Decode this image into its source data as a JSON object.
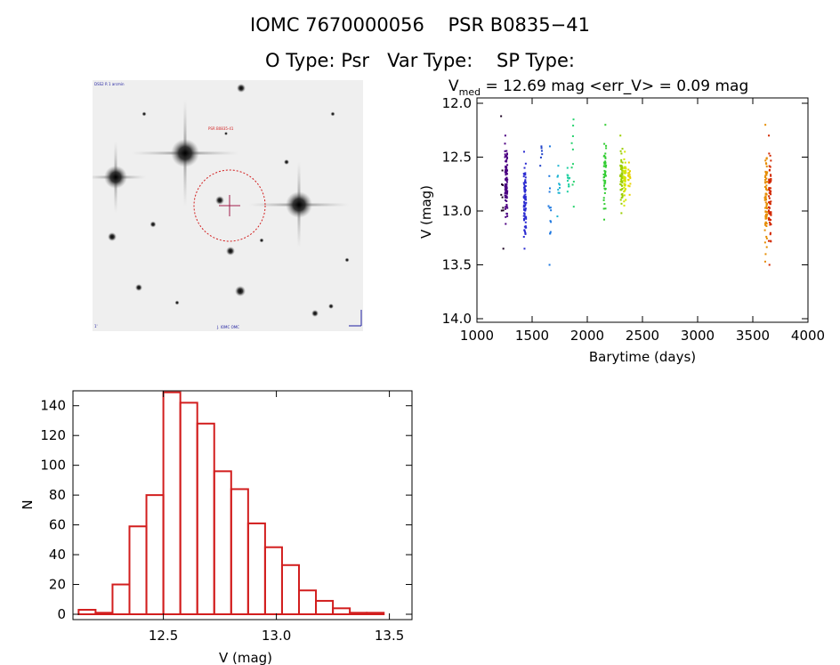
{
  "header": {
    "title_line1": "IOMC 7670000056    PSR B0835−41",
    "title_line2": "O Type: Psr   Var Type:    SP Type:"
  },
  "finder": {
    "label_top_left": "DSS2 R 1 arcmin",
    "label_target": "PSR B0835-41",
    "label_bottom_left": "1'",
    "label_bottom_center": "J. IOMC OMC"
  },
  "chart_data": [
    {
      "type": "scatter",
      "title": "V_med = 12.69 mag <err_V> = 0.09 mag",
      "title_main": "V",
      "title_sub": "med",
      "title_rest": " = 12.69 mag <err_V> = 0.09 mag",
      "xlabel": "Barytime (days)",
      "ylabel": "V (mag)",
      "xlim": [
        1000,
        4000
      ],
      "ylim": [
        14.0,
        12.0
      ],
      "y_inverted": true,
      "xticks": [
        1000,
        1500,
        2000,
        2500,
        3000,
        3500,
        4000
      ],
      "xtick_labels": [
        "1000",
        "1500",
        "2000",
        "2500",
        "3000",
        "3500",
        "4000"
      ],
      "yticks": [
        12.0,
        12.5,
        13.0,
        13.5,
        14.0
      ],
      "ytick_labels": [
        "12.0",
        "12.5",
        "13.0",
        "13.5",
        "14.0"
      ],
      "colormap": "time (purple → red)",
      "clusters": [
        {
          "x": 1230,
          "y_min": 12.12,
          "y_max": 13.35,
          "n": 10,
          "color": "#1a0020"
        },
        {
          "x": 1265,
          "y_min": 12.3,
          "y_max": 13.12,
          "n": 90,
          "color": "#4b0082"
        },
        {
          "x": 1435,
          "y_min": 12.45,
          "y_max": 13.35,
          "n": 80,
          "color": "#2a2ad0"
        },
        {
          "x": 1585,
          "y_min": 12.4,
          "y_max": 12.58,
          "n": 6,
          "color": "#1e40c8"
        },
        {
          "x": 1660,
          "y_min": 12.4,
          "y_max": 13.5,
          "n": 14,
          "color": "#1e78e0"
        },
        {
          "x": 1740,
          "y_min": 12.58,
          "y_max": 13.05,
          "n": 10,
          "color": "#1eb4d2"
        },
        {
          "x": 1830,
          "y_min": 12.6,
          "y_max": 12.82,
          "n": 12,
          "color": "#1ed0a0"
        },
        {
          "x": 1870,
          "y_min": 12.15,
          "y_max": 12.96,
          "n": 10,
          "color": "#28d26e"
        },
        {
          "x": 2160,
          "y_min": 12.2,
          "y_max": 13.08,
          "n": 45,
          "color": "#32cd32"
        },
        {
          "x": 2310,
          "y_min": 12.3,
          "y_max": 13.02,
          "n": 55,
          "color": "#9acd00"
        },
        {
          "x": 2340,
          "y_min": 12.45,
          "y_max": 12.95,
          "n": 40,
          "color": "#d2e600"
        },
        {
          "x": 2380,
          "y_min": 12.55,
          "y_max": 12.85,
          "n": 20,
          "color": "#e6d200"
        },
        {
          "x": 3620,
          "y_min": 12.2,
          "y_max": 13.47,
          "n": 80,
          "color": "#e68c00"
        },
        {
          "x": 3655,
          "y_min": 12.3,
          "y_max": 13.5,
          "n": 70,
          "color": "#d22800"
        }
      ]
    },
    {
      "type": "bar",
      "subtype": "histogram",
      "xlabel": "V (mag)",
      "ylabel": "N",
      "xlim": [
        12.1,
        13.6
      ],
      "ylim": [
        0,
        150
      ],
      "xticks": [
        12.5,
        13.0,
        13.5
      ],
      "xtick_labels": [
        "12.5",
        "13.0",
        "13.5"
      ],
      "yticks": [
        0,
        20,
        40,
        60,
        80,
        100,
        120,
        140
      ],
      "ytick_labels": [
        "0",
        "20",
        "40",
        "60",
        "80",
        "100",
        "120",
        "140"
      ],
      "bin_width": 0.075,
      "bin_starts": [
        12.125,
        12.2,
        12.275,
        12.35,
        12.425,
        12.5,
        12.575,
        12.65,
        12.725,
        12.8,
        12.875,
        12.95,
        13.025,
        13.1,
        13.175,
        13.25,
        13.325,
        13.4,
        13.475
      ],
      "values": [
        3,
        1,
        20,
        59,
        80,
        149,
        142,
        128,
        96,
        84,
        61,
        45,
        33,
        16,
        9,
        4,
        1,
        1,
        0
      ],
      "color": "#d21e1e"
    }
  ]
}
